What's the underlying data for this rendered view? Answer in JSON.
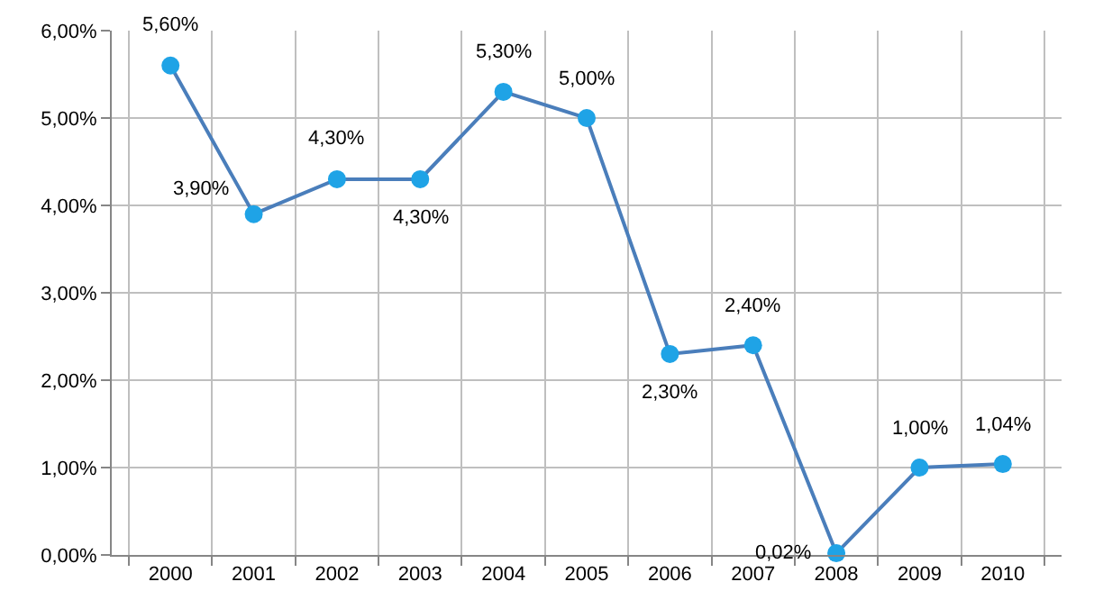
{
  "chart_data": {
    "type": "line",
    "categories": [
      "2000",
      "2001",
      "2002",
      "2003",
      "2004",
      "2005",
      "2006",
      "2007",
      "2008",
      "2009",
      "2010"
    ],
    "series": [
      {
        "color": "#4a7ebb",
        "values": [
          5.6,
          3.9,
          4.3,
          4.3,
          5.3,
          5.0,
          2.3,
          2.4,
          0.02,
          1.0,
          1.04
        ],
        "value_labels": [
          "5,60%",
          "3,90%",
          "4,30%",
          "4,30%",
          "5,30%",
          "5,00%",
          "2,30%",
          "2,40%",
          "0,02%",
          "1,00%",
          "1,04%"
        ]
      }
    ],
    "ylim": [
      0,
      6
    ],
    "yticks": [
      {
        "value": 0,
        "label": "0,00%"
      },
      {
        "value": 1,
        "label": "1,00%"
      },
      {
        "value": 2,
        "label": "2,00%"
      },
      {
        "value": 3,
        "label": "3,00%"
      },
      {
        "value": 4,
        "label": "4,00%"
      },
      {
        "value": 5,
        "label": "5,00%"
      },
      {
        "value": 6,
        "label": "6,00%"
      }
    ],
    "grid": true,
    "marker": "circle",
    "line_style": "solid"
  }
}
